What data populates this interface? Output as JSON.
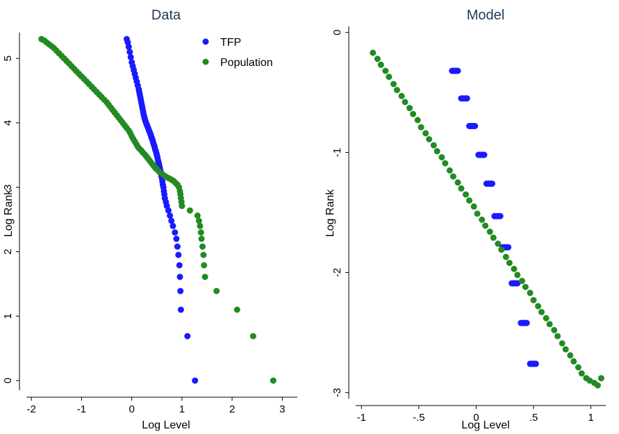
{
  "chart_data": [
    {
      "type": "scatter",
      "title": "Data",
      "xlabel": "Log Level",
      "ylabel": "Log Rank",
      "xlim": [
        -2.1,
        3.3
      ],
      "ylim": [
        -0.15,
        5.4
      ],
      "x_ticks": [
        -2,
        -1,
        0,
        1,
        2,
        3
      ],
      "y_ticks": [
        0,
        1,
        2,
        3,
        4,
        5
      ],
      "x_tick_labels": [
        "-2",
        "-1",
        "0",
        "1",
        "2",
        "3"
      ],
      "y_tick_labels": [
        "0",
        "1",
        "2",
        "3",
        "4",
        "5"
      ],
      "grid": false,
      "legend": {
        "placement": "top-right",
        "entries": [
          "TFP",
          "Population"
        ]
      },
      "series": [
        {
          "name": "TFP",
          "color": "#1a1aff",
          "x": [
            1.26,
            1.11,
            0.98,
            0.97,
            0.96,
            0.95,
            0.93,
            0.91,
            0.89,
            0.86,
            0.82,
            0.79,
            0.76,
            0.73,
            0.7,
            0.68,
            0.66,
            0.65,
            0.64,
            0.63,
            0.62,
            0.61,
            0.6,
            0.59,
            0.58,
            0.57,
            0.56,
            0.55,
            0.54,
            0.53,
            0.52,
            0.51,
            0.5,
            0.49,
            0.48,
            0.47,
            0.46,
            0.45,
            0.44,
            0.43,
            0.42,
            0.41,
            0.4,
            0.39,
            0.38,
            0.37,
            0.36,
            0.35,
            0.34,
            0.33,
            0.32,
            0.31,
            0.3,
            0.29,
            0.28,
            0.27,
            0.26,
            0.25,
            0.24,
            0.23,
            0.22,
            0.21,
            0.2,
            0.19,
            0.18,
            0.17,
            0.16,
            0.15,
            0.14,
            0.12,
            0.1,
            0.08,
            0.06,
            0.04,
            0.02,
            0.0,
            -0.02,
            -0.04,
            -0.06,
            -0.08,
            -0.1
          ],
          "y": [
            0.0,
            0.69,
            1.1,
            1.39,
            1.61,
            1.79,
            1.95,
            2.08,
            2.2,
            2.3,
            2.4,
            2.48,
            2.56,
            2.64,
            2.71,
            2.77,
            2.83,
            2.89,
            2.94,
            3.0,
            3.04,
            3.09,
            3.14,
            3.18,
            3.22,
            3.26,
            3.3,
            3.33,
            3.37,
            3.4,
            3.43,
            3.47,
            3.5,
            3.53,
            3.56,
            3.58,
            3.61,
            3.64,
            3.66,
            3.69,
            3.71,
            3.74,
            3.76,
            3.78,
            3.81,
            3.83,
            3.85,
            3.87,
            3.89,
            3.91,
            3.93,
            3.95,
            3.97,
            3.99,
            4.01,
            4.03,
            4.06,
            4.09,
            4.12,
            4.16,
            4.2,
            4.24,
            4.28,
            4.32,
            4.36,
            4.4,
            4.44,
            4.48,
            4.52,
            4.58,
            4.64,
            4.7,
            4.76,
            4.82,
            4.88,
            4.94,
            5.02,
            5.1,
            5.18,
            5.25,
            5.3
          ]
        },
        {
          "name": "Population",
          "color": "#228b22",
          "x": [
            2.82,
            2.42,
            2.1,
            1.69,
            1.46,
            1.44,
            1.43,
            1.41,
            1.39,
            1.38,
            1.36,
            1.34,
            1.31,
            1.16,
            1.0,
            0.99,
            0.98,
            0.97,
            0.96,
            0.94,
            0.91,
            0.87,
            0.83,
            0.79,
            0.74,
            0.69,
            0.65,
            0.6,
            0.55,
            0.51,
            0.47,
            0.44,
            0.41,
            0.38,
            0.35,
            0.32,
            0.29,
            0.26,
            0.22,
            0.19,
            0.15,
            0.12,
            0.09,
            0.06,
            0.03,
            0.0,
            -0.03,
            -0.06,
            -0.1,
            -0.14,
            -0.18,
            -0.22,
            -0.26,
            -0.3,
            -0.34,
            -0.38,
            -0.42,
            -0.46,
            -0.5,
            -0.55,
            -0.6,
            -0.65,
            -0.7,
            -0.75,
            -0.8,
            -0.85,
            -0.9,
            -0.95,
            -1.0,
            -1.05,
            -1.1,
            -1.15,
            -1.2,
            -1.25,
            -1.3,
            -1.35,
            -1.4,
            -1.45,
            -1.5,
            -1.55,
            -1.6,
            -1.65,
            -1.7,
            -1.75,
            -1.8
          ],
          "y": [
            0.0,
            0.69,
            1.1,
            1.39,
            1.61,
            1.79,
            1.95,
            2.08,
            2.2,
            2.3,
            2.4,
            2.48,
            2.56,
            2.64,
            2.71,
            2.77,
            2.83,
            2.89,
            2.94,
            3.0,
            3.04,
            3.07,
            3.1,
            3.12,
            3.14,
            3.16,
            3.18,
            3.21,
            3.24,
            3.27,
            3.3,
            3.33,
            3.36,
            3.39,
            3.42,
            3.45,
            3.48,
            3.51,
            3.54,
            3.57,
            3.6,
            3.63,
            3.67,
            3.71,
            3.75,
            3.79,
            3.84,
            3.88,
            3.92,
            3.96,
            4.0,
            4.04,
            4.08,
            4.12,
            4.16,
            4.2,
            4.24,
            4.28,
            4.32,
            4.36,
            4.4,
            4.44,
            4.48,
            4.52,
            4.56,
            4.6,
            4.64,
            4.68,
            4.72,
            4.76,
            4.8,
            4.84,
            4.88,
            4.92,
            4.96,
            5.0,
            5.04,
            5.08,
            5.12,
            5.16,
            5.19,
            5.22,
            5.25,
            5.28,
            5.3
          ]
        }
      ]
    },
    {
      "type": "scatter",
      "title": "Model",
      "xlabel": "Log Level",
      "ylabel": "Log Rank",
      "xlim": [
        -1.05,
        1.13
      ],
      "ylim": [
        -3.05,
        0.05
      ],
      "x_ticks": [
        -1,
        -0.5,
        0,
        0.5,
        1
      ],
      "y_ticks": [
        0,
        -1,
        -2,
        -3
      ],
      "x_tick_labels": [
        "-1",
        "-.5",
        "0",
        ".5",
        "1"
      ],
      "y_tick_labels": [
        "0",
        "-1",
        "-2",
        "-3"
      ],
      "grid": false,
      "series": [
        {
          "name": "TFP",
          "color": "#1a1aff",
          "x": [
            -0.21,
            -0.2,
            -0.19,
            -0.18,
            -0.17,
            -0.16,
            -0.13,
            -0.12,
            -0.11,
            -0.1,
            -0.09,
            -0.08,
            -0.06,
            -0.05,
            -0.04,
            -0.03,
            -0.02,
            -0.01,
            0.02,
            0.03,
            0.04,
            0.05,
            0.06,
            0.07,
            0.09,
            0.1,
            0.11,
            0.12,
            0.13,
            0.14,
            0.16,
            0.17,
            0.18,
            0.19,
            0.2,
            0.21,
            0.23,
            0.24,
            0.25,
            0.26,
            0.27,
            0.28,
            0.31,
            0.32,
            0.33,
            0.34,
            0.35,
            0.36,
            0.39,
            0.4,
            0.41,
            0.42,
            0.43,
            0.44,
            0.47,
            0.48,
            0.49,
            0.5,
            0.51,
            0.52
          ],
          "y": [
            -0.32,
            -0.32,
            -0.32,
            -0.32,
            -0.32,
            -0.32,
            -0.55,
            -0.55,
            -0.55,
            -0.55,
            -0.55,
            -0.55,
            -0.78,
            -0.78,
            -0.78,
            -0.78,
            -0.78,
            -0.78,
            -1.02,
            -1.02,
            -1.02,
            -1.02,
            -1.02,
            -1.02,
            -1.26,
            -1.26,
            -1.26,
            -1.26,
            -1.26,
            -1.26,
            -1.53,
            -1.53,
            -1.53,
            -1.53,
            -1.53,
            -1.53,
            -1.79,
            -1.79,
            -1.79,
            -1.79,
            -1.79,
            -1.79,
            -2.09,
            -2.09,
            -2.09,
            -2.09,
            -2.09,
            -2.09,
            -2.42,
            -2.42,
            -2.42,
            -2.42,
            -2.42,
            -2.42,
            -2.76,
            -2.76,
            -2.76,
            -2.76,
            -2.76,
            -2.76
          ]
        },
        {
          "name": "Population",
          "color": "#228b22",
          "x": [
            -0.9,
            -0.86,
            -0.83,
            -0.79,
            -0.76,
            -0.72,
            -0.69,
            -0.65,
            -0.62,
            -0.58,
            -0.55,
            -0.51,
            -0.48,
            -0.44,
            -0.41,
            -0.37,
            -0.34,
            -0.3,
            -0.27,
            -0.23,
            -0.2,
            -0.16,
            -0.13,
            -0.09,
            -0.06,
            -0.02,
            0.01,
            0.05,
            0.08,
            0.12,
            0.15,
            0.19,
            0.22,
            0.26,
            0.29,
            0.33,
            0.36,
            0.4,
            0.43,
            0.47,
            0.5,
            0.54,
            0.57,
            0.61,
            0.64,
            0.68,
            0.71,
            0.75,
            0.78,
            0.82,
            0.85,
            0.89,
            0.92,
            0.96,
            0.99,
            1.03,
            1.06,
            1.09
          ],
          "y": [
            -0.17,
            -0.22,
            -0.27,
            -0.32,
            -0.37,
            -0.43,
            -0.48,
            -0.53,
            -0.58,
            -0.63,
            -0.68,
            -0.73,
            -0.79,
            -0.84,
            -0.89,
            -0.94,
            -0.99,
            -1.04,
            -1.09,
            -1.15,
            -1.2,
            -1.25,
            -1.3,
            -1.35,
            -1.4,
            -1.45,
            -1.51,
            -1.56,
            -1.61,
            -1.66,
            -1.71,
            -1.76,
            -1.81,
            -1.87,
            -1.92,
            -1.97,
            -2.02,
            -2.07,
            -2.12,
            -2.17,
            -2.23,
            -2.28,
            -2.33,
            -2.38,
            -2.43,
            -2.48,
            -2.53,
            -2.59,
            -2.64,
            -2.69,
            -2.74,
            -2.79,
            -2.84,
            -2.88,
            -2.9,
            -2.92,
            -2.94,
            -2.88
          ]
        }
      ]
    }
  ]
}
